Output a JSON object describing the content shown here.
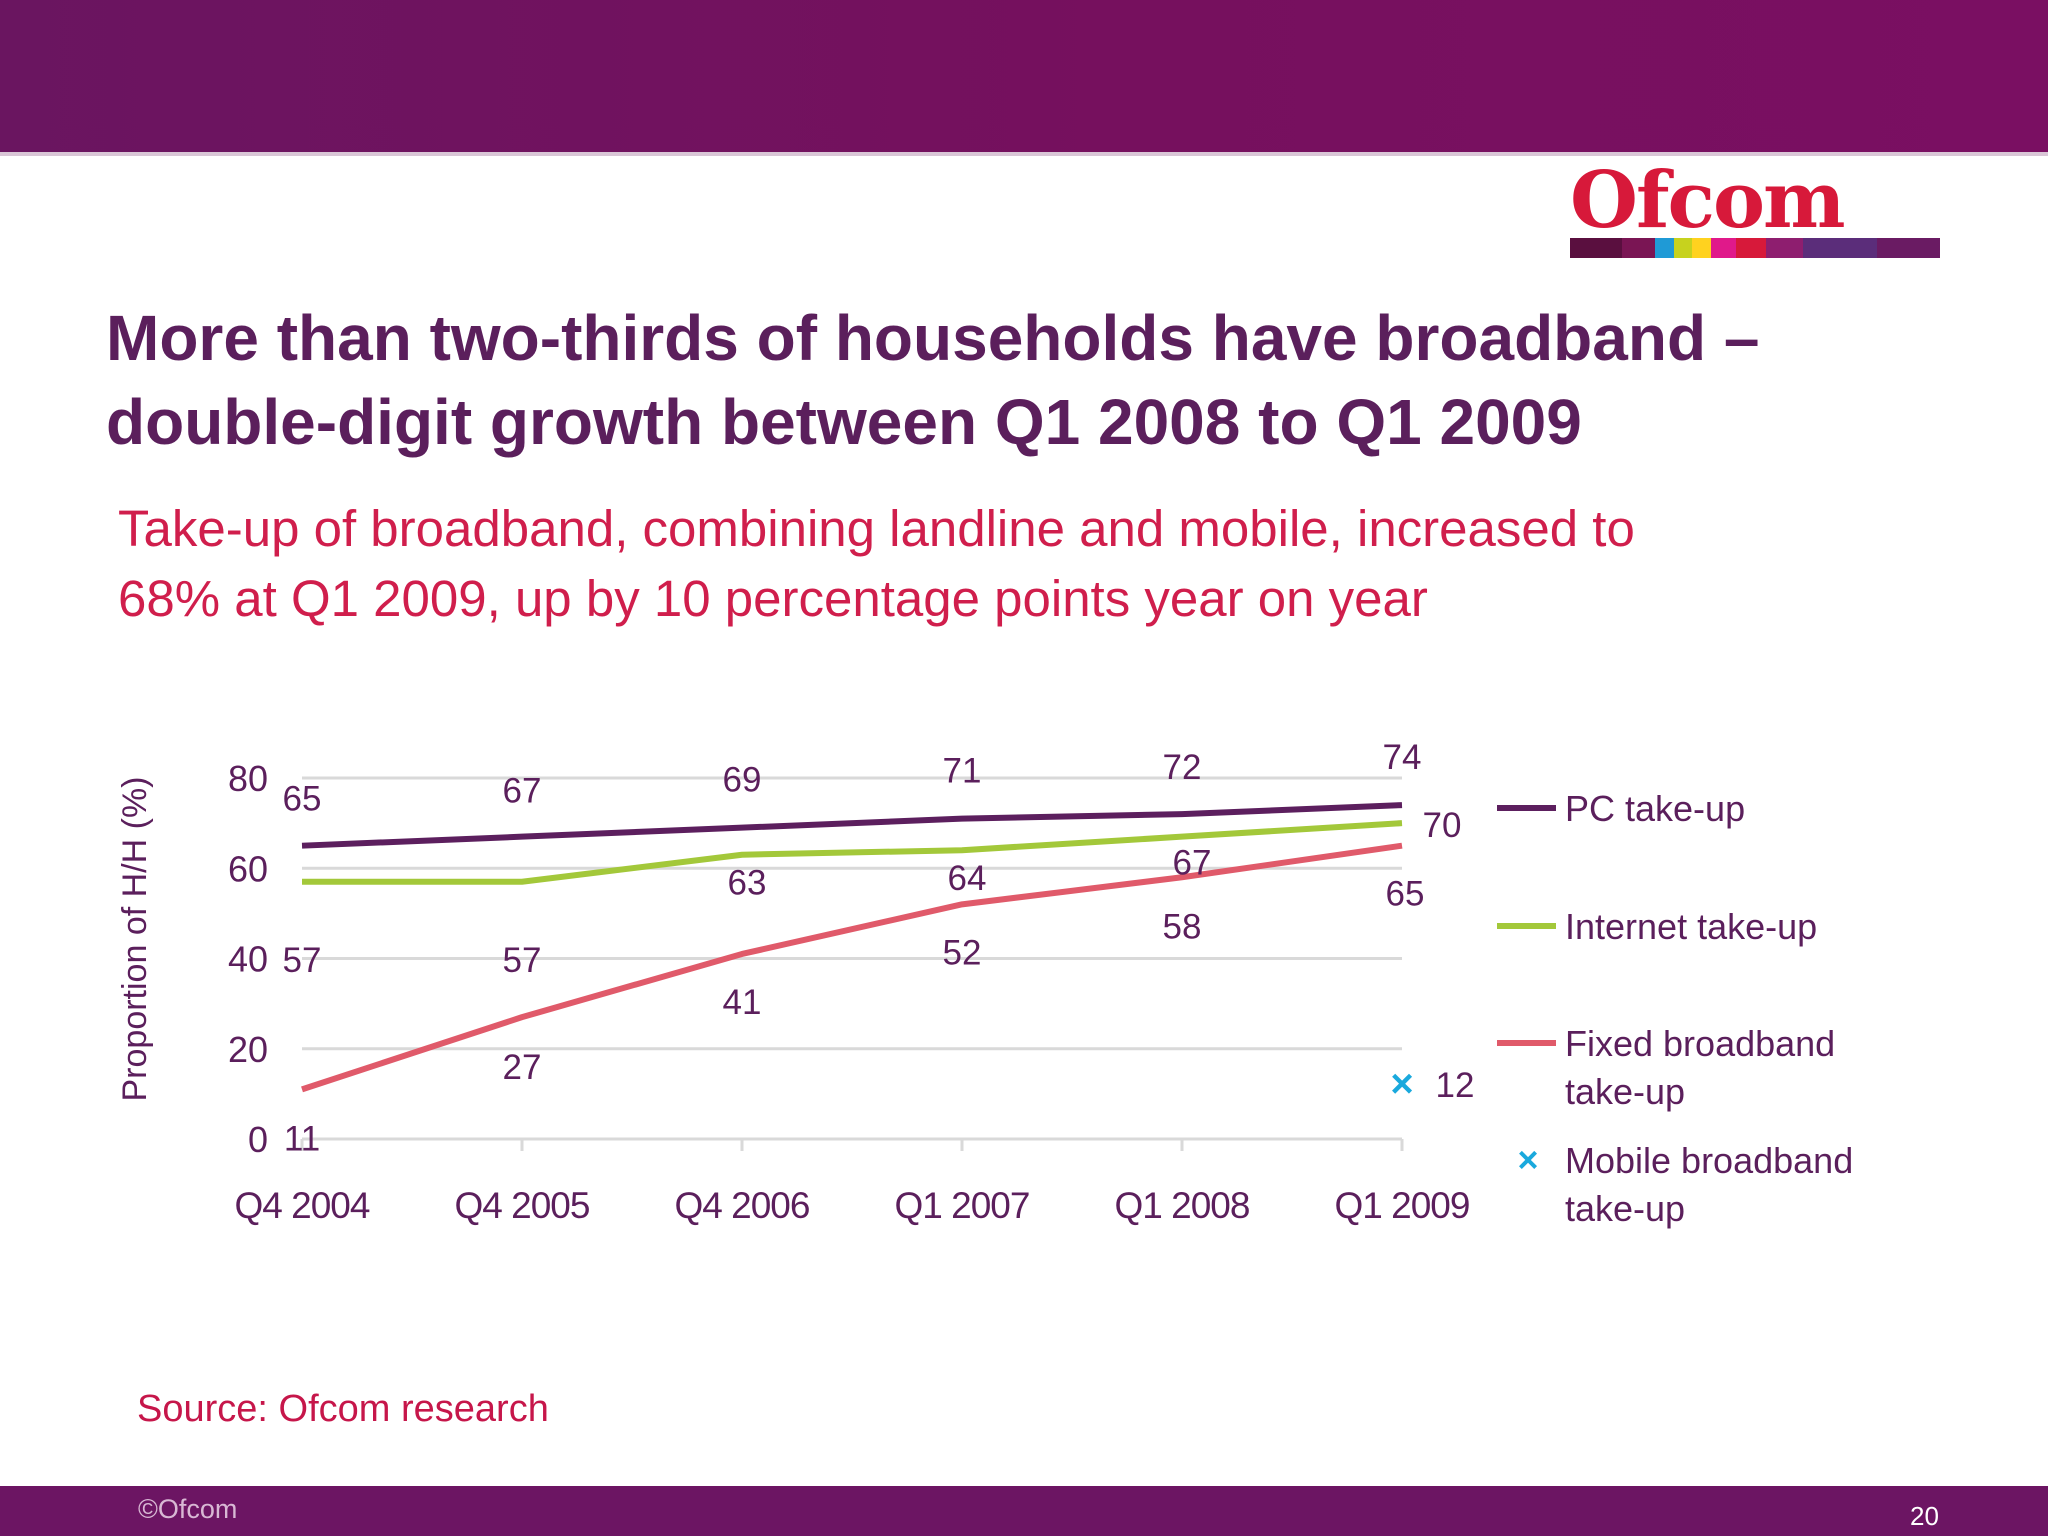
{
  "brand": {
    "logo_text": "Ofcom",
    "logo_colors": [
      "#5a0f3f",
      "#7a1554",
      "#1f9ad6",
      "#c7d21e",
      "#ffd21f",
      "#e0198a",
      "#d7193a",
      "#8e1e6f",
      "#5b2d7a",
      "#6a1b63"
    ],
    "band_color": "#6c1563"
  },
  "title_lines": [
    "More than two-thirds of households have broadband –",
    "double-digit growth between Q1 2008 to Q1 2009"
  ],
  "subtitle_lines": [
    "Take-up of broadband, combining landline and mobile, increased to",
    "68% at Q1 2009, up by 10 percentage points year on year"
  ],
  "chart_data": {
    "type": "line",
    "categories": [
      "Q4 2004",
      "Q4 2005",
      "Q4 2006",
      "Q1 2007",
      "Q1 2008",
      "Q1 2009"
    ],
    "ylabel": "Proportion of H/H (%)",
    "xlabel": "",
    "ylim": [
      0,
      80
    ],
    "yticks": [
      "0",
      "20",
      "40",
      "60",
      "80"
    ],
    "grid": true,
    "legend_position": "right",
    "series": [
      {
        "name": "PC take-up",
        "color": "#5c1f5e",
        "values": [
          65,
          67,
          69,
          71,
          72,
          74
        ],
        "labels": [
          "65",
          "67",
          "69",
          "71",
          "72",
          "74"
        ]
      },
      {
        "name": "Internet take-up",
        "color": "#a3c83a",
        "values": [
          57,
          57,
          63,
          64,
          67,
          70
        ],
        "labels": [
          "57",
          "57",
          "63",
          "64",
          "67",
          "70"
        ]
      },
      {
        "name": "Fixed broadband take-up",
        "color": "#e05a6a",
        "values": [
          11,
          27,
          41,
          52,
          58,
          65
        ],
        "labels": [
          "11",
          "27",
          "41",
          "52",
          "58",
          "65"
        ]
      },
      {
        "name": "Mobile broadband take-up",
        "color": "#1aa9dd",
        "marker": "×",
        "values": [
          null,
          null,
          null,
          null,
          null,
          12
        ],
        "labels": [
          "",
          "",
          "",
          "",
          "",
          "12"
        ]
      }
    ]
  },
  "source": "Source: Ofcom research",
  "footer": {
    "copyright": "©Ofcom",
    "page_number": "20"
  }
}
